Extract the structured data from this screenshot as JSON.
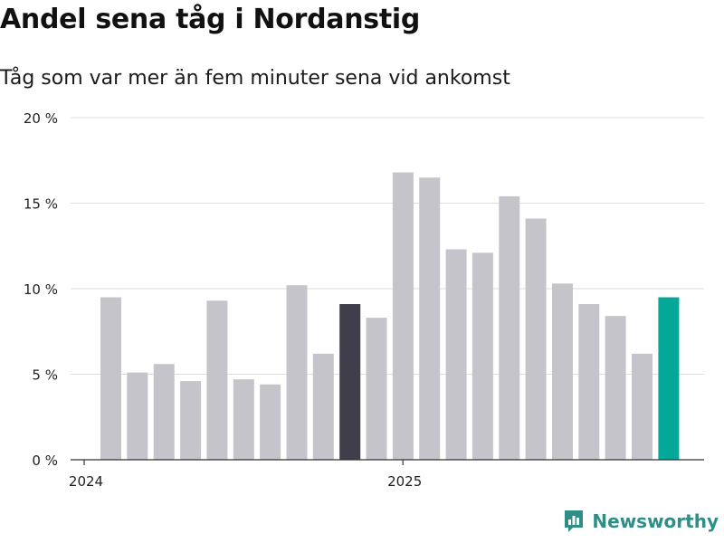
{
  "title": "Andel sena tåg i Nordanstig",
  "subtitle": "Tåg som var mer än fem minuter sena vid ankomst",
  "brand": {
    "name": "Newsworthy"
  },
  "colors": {
    "default": "#c5c4cb",
    "highlight": "#403e4b",
    "latest": "#04a898",
    "grid": "#dddddd",
    "axis": "#333333",
    "brand": "#2f8f86"
  },
  "chart_data": {
    "type": "bar",
    "ylim": [
      0,
      20
    ],
    "yticks": [
      0,
      5,
      10,
      15,
      20
    ],
    "ytick_labels": [
      "0 %",
      "5 %",
      "10 %",
      "15 %",
      "20 %"
    ],
    "xtick_labels": [
      {
        "label": "2024",
        "index": 0
      },
      {
        "label": "2025",
        "index": 12
      }
    ],
    "values": [
      9.5,
      5.1,
      5.6,
      4.6,
      9.3,
      4.7,
      4.4,
      10.2,
      6.2,
      9.1,
      8.3,
      16.8,
      16.5,
      12.3,
      12.1,
      15.4,
      14.1,
      10.3,
      9.1,
      8.4,
      6.2,
      9.5
    ],
    "highlight_index": 9,
    "latest_index": 21,
    "xlabel": "",
    "ylabel": ""
  }
}
